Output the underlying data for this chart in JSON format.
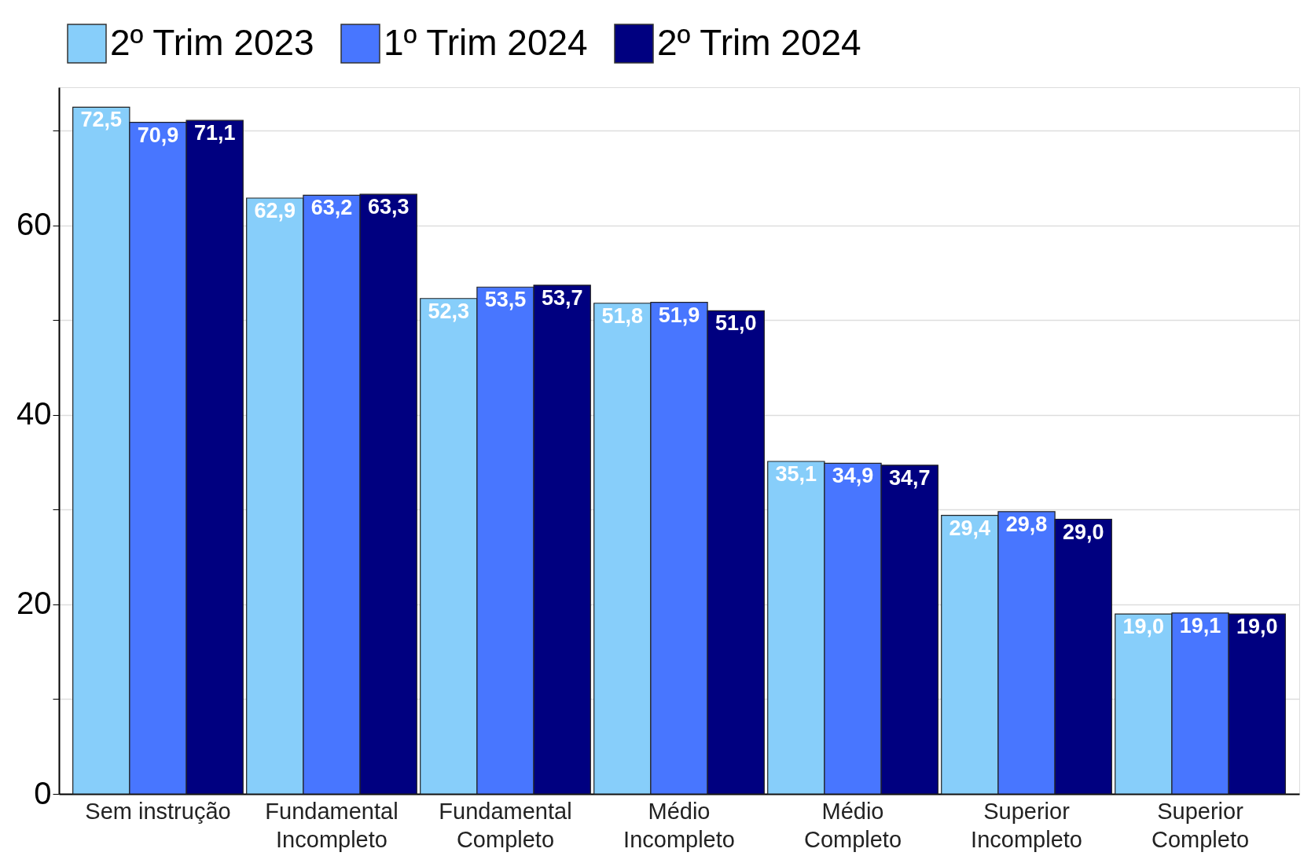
{
  "chart_data": {
    "type": "bar",
    "categories": [
      "Sem instrução",
      "Fundamental\nIncompleto",
      "Fundamental\nCompleto",
      "Médio\nIncompleto",
      "Médio\nCompleto",
      "Superior\nIncompleto",
      "Superior\nCompleto"
    ],
    "series": [
      {
        "name": "2º Trim 2023",
        "color": "#87cefa",
        "values": [
          72.5,
          62.9,
          52.3,
          51.8,
          35.1,
          29.4,
          19.0
        ],
        "value_labels": [
          "72,5",
          "62,9",
          "52,3",
          "51,8",
          "35,1",
          "29,4",
          "19,0"
        ]
      },
      {
        "name": "1º Trim 2024",
        "color": "#4876ff",
        "values": [
          70.9,
          63.2,
          53.5,
          51.9,
          34.9,
          29.8,
          19.1
        ],
        "value_labels": [
          "70,9",
          "63,2",
          "53,5",
          "51,9",
          "34,9",
          "29,8",
          "19,1"
        ]
      },
      {
        "name": "2º Trim 2024",
        "color": "#000080",
        "values": [
          71.1,
          63.3,
          53.7,
          51.0,
          34.7,
          29.0,
          19.0
        ],
        "value_labels": [
          "71,1",
          "63,3",
          "53,7",
          "51,0",
          "34,7",
          "29,0",
          "19,0"
        ]
      }
    ],
    "ylim": [
      0,
      74.6
    ],
    "yticks": [
      0,
      {
        "value": 10,
        "label": null
      },
      20,
      {
        "value": 30,
        "label": null
      },
      40,
      {
        "value": 50,
        "label": null
      },
      60,
      {
        "value": 70,
        "label": null
      }
    ],
    "grid": "y",
    "legend": "top"
  }
}
